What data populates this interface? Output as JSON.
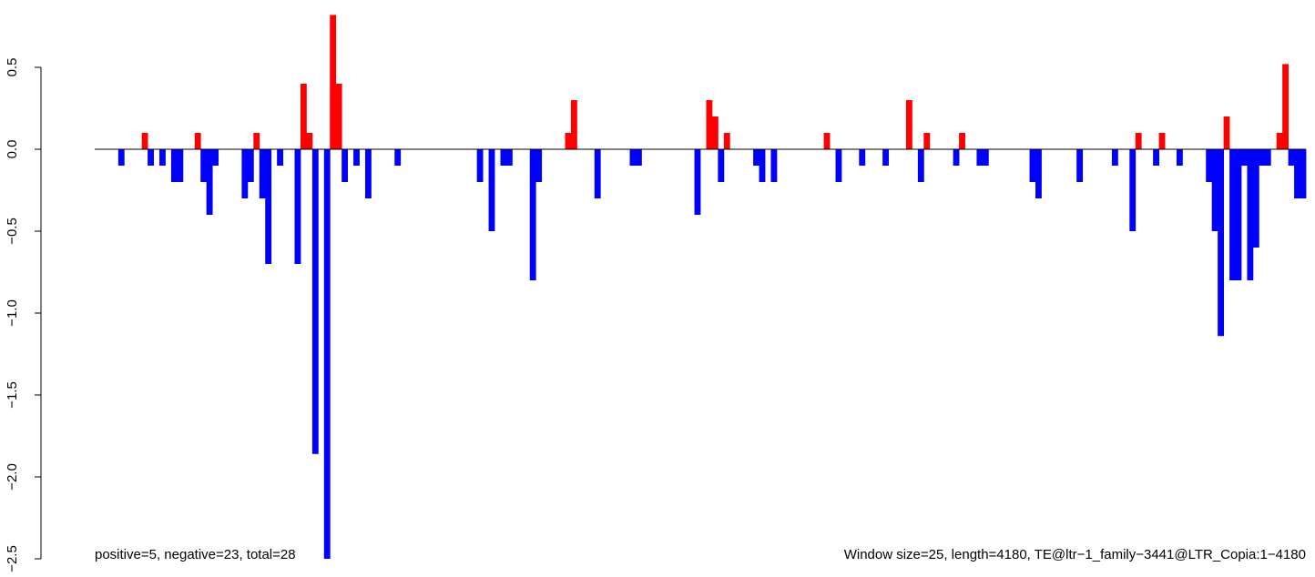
{
  "chart_data": {
    "type": "bar",
    "title": "",
    "xlabel": "",
    "ylabel": "",
    "ylim": [
      -2.5,
      0.8
    ],
    "yticks": [
      -2.5,
      -2.0,
      -1.5,
      -1.0,
      -0.5,
      0.0,
      0.5
    ],
    "ytick_labels": [
      "−2.5",
      "−2.0",
      "−1.5",
      "−1.0",
      "−0.5",
      "0.0",
      "0.5"
    ],
    "colors": {
      "positive": "#ff0000",
      "negative": "#0000ff",
      "zero_line": "#000000"
    },
    "window_size": 25,
    "length": 4180,
    "values": [
      0,
      0,
      0,
      0,
      -0.1,
      0,
      0,
      0,
      0.1,
      -0.1,
      0,
      -0.1,
      0,
      -0.2,
      -0.2,
      0,
      0,
      0.1,
      -0.2,
      -0.4,
      -0.1,
      0,
      0,
      0,
      0,
      -0.3,
      -0.2,
      0.1,
      -0.3,
      -0.7,
      0,
      -0.1,
      0,
      0,
      -0.7,
      0.4,
      0.1,
      -1.86,
      0,
      -2.5,
      0.82,
      0.4,
      -0.2,
      0,
      -0.1,
      0,
      -0.3,
      0,
      0,
      0,
      0,
      -0.1,
      0,
      0,
      0,
      0,
      0,
      0,
      0,
      0,
      0,
      0,
      0,
      0,
      0,
      -0.2,
      0,
      -0.5,
      0,
      -0.1,
      -0.1,
      0,
      0,
      0,
      -0.8,
      -0.2,
      0,
      0,
      0,
      0,
      0.1,
      0.3,
      0,
      0,
      0,
      -0.3,
      0,
      0,
      0,
      0,
      0,
      -0.1,
      -0.1,
      0,
      0,
      0,
      0,
      0,
      0,
      0,
      0,
      0,
      -0.4,
      0,
      0.3,
      0.2,
      -0.2,
      0.1,
      0,
      0,
      0,
      0,
      -0.1,
      -0.2,
      0,
      -0.2,
      0,
      0,
      0,
      0,
      0,
      0,
      0,
      0,
      0.1,
      0,
      -0.2,
      0,
      0,
      0,
      -0.1,
      0,
      0,
      0,
      -0.1,
      0,
      0,
      0,
      0.3,
      0,
      -0.2,
      0.1,
      0,
      0,
      0,
      0,
      -0.1,
      0.1,
      0,
      0,
      -0.1,
      -0.1,
      0,
      0,
      0,
      0,
      0,
      0,
      0,
      -0.2,
      -0.3,
      0,
      0,
      0,
      0,
      0,
      0,
      -0.2,
      0,
      0,
      0,
      0,
      0,
      -0.1,
      0,
      0,
      -0.5,
      0.1,
      0,
      0,
      -0.1,
      0.1,
      0,
      0,
      -0.1,
      0,
      0,
      0,
      0,
      -0.2,
      -0.5,
      -1.14,
      0.2,
      -0.8,
      -0.8,
      -0.1,
      -0.8,
      -0.6,
      -0.1,
      -0.1,
      0,
      0.1,
      0.52,
      -0.1,
      -0.3,
      -0.3
    ],
    "annotations": {
      "left": "positive=5, negative=23, total=28",
      "right": "Window size=25, length=4180, TE@ltr−1_family−3441@LTR_Copia:1−4180"
    }
  }
}
